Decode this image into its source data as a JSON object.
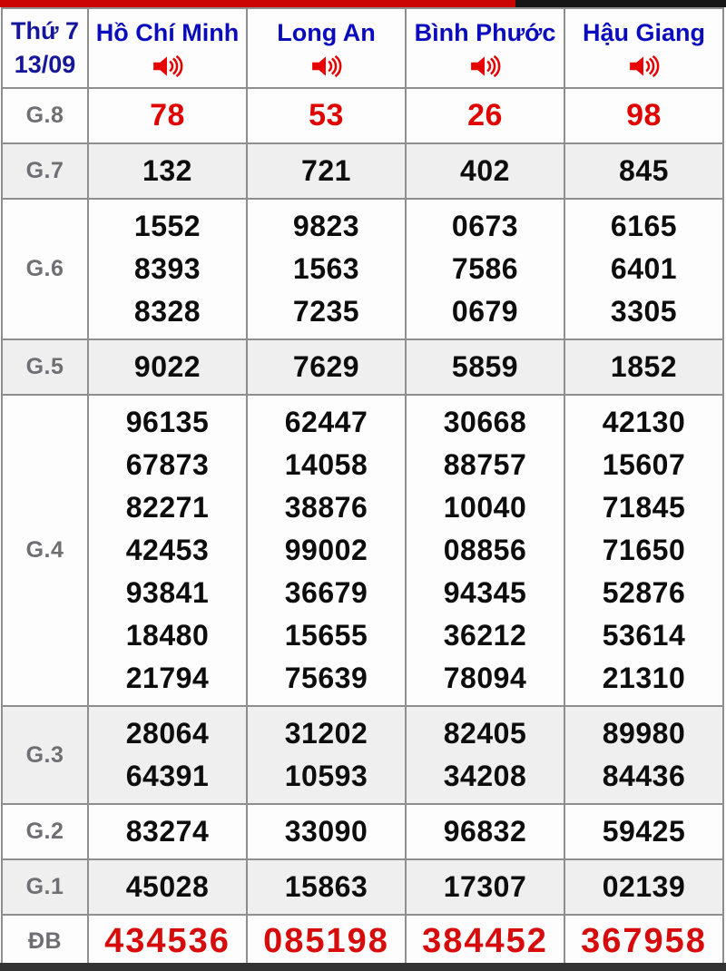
{
  "top_bar": {
    "red_color": "#cb0404",
    "black_color": "#161616"
  },
  "bottom_bar": {
    "color": "#333333"
  },
  "header": {
    "day": "Thứ 7",
    "date": "13/09",
    "columns": [
      {
        "name": "Hồ Chí Minh",
        "icon": "speaker-icon"
      },
      {
        "name": "Long An",
        "icon": "speaker-icon"
      },
      {
        "name": "Bình Phước",
        "icon": "speaker-icon"
      },
      {
        "name": "Hậu Giang",
        "icon": "speaker-icon"
      }
    ]
  },
  "colors": {
    "date_text": "#16169a",
    "province_text": "#0b0bbe",
    "label_text": "#6e6e73",
    "number_text": "#0d0d0d",
    "highlight_red": "#e00000",
    "alt_row_bg": "#f0eff0",
    "header_bg": "#ececec",
    "border": "#8e8e8e",
    "speaker_red": "#e80000"
  },
  "prizes": [
    {
      "label": "G.8",
      "highlight": true,
      "values": [
        [
          "78"
        ],
        [
          "53"
        ],
        [
          "26"
        ],
        [
          "98"
        ]
      ]
    },
    {
      "label": "G.7",
      "values": [
        [
          "132"
        ],
        [
          "721"
        ],
        [
          "402"
        ],
        [
          "845"
        ]
      ]
    },
    {
      "label": "G.6",
      "values": [
        [
          "1552",
          "8393",
          "8328"
        ],
        [
          "9823",
          "1563",
          "7235"
        ],
        [
          "0673",
          "7586",
          "0679"
        ],
        [
          "6165",
          "6401",
          "3305"
        ]
      ]
    },
    {
      "label": "G.5",
      "values": [
        [
          "9022"
        ],
        [
          "7629"
        ],
        [
          "5859"
        ],
        [
          "1852"
        ]
      ]
    },
    {
      "label": "G.4",
      "values": [
        [
          "96135",
          "67873",
          "82271",
          "42453",
          "93841",
          "18480",
          "21794"
        ],
        [
          "62447",
          "14058",
          "38876",
          "99002",
          "36679",
          "15655",
          "75639"
        ],
        [
          "30668",
          "88757",
          "10040",
          "08856",
          "94345",
          "36212",
          "78094"
        ],
        [
          "42130",
          "15607",
          "71845",
          "71650",
          "52876",
          "53614",
          "21310"
        ]
      ]
    },
    {
      "label": "G.3",
      "values": [
        [
          "28064",
          "64391"
        ],
        [
          "31202",
          "10593"
        ],
        [
          "82405",
          "34208"
        ],
        [
          "89980",
          "84436"
        ]
      ]
    },
    {
      "label": "G.2",
      "values": [
        [
          "83274"
        ],
        [
          "33090"
        ],
        [
          "96832"
        ],
        [
          "59425"
        ]
      ]
    },
    {
      "label": "G.1",
      "values": [
        [
          "45028"
        ],
        [
          "15863"
        ],
        [
          "17307"
        ],
        [
          "02139"
        ]
      ]
    },
    {
      "label": "ĐB",
      "highlight": true,
      "size": "xl",
      "values": [
        [
          "434536"
        ],
        [
          "085198"
        ],
        [
          "384452"
        ],
        [
          "367958"
        ]
      ]
    }
  ]
}
